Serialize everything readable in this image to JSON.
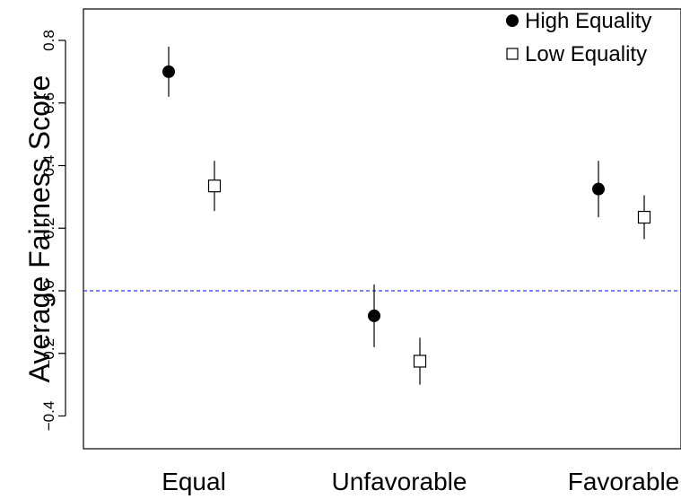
{
  "chart_data": {
    "type": "scatter",
    "title": "",
    "xlabel": "",
    "ylabel": "Average Fairness Score",
    "categories": [
      "Equal",
      "Unfavorable",
      "Favorable"
    ],
    "ylim": [
      -0.5,
      0.88
    ],
    "yticks": [
      -0.4,
      -0.2,
      0.0,
      0.2,
      0.4,
      0.6,
      0.8
    ],
    "ytick_labels": [
      "−0.4",
      "−0.2",
      "0.0",
      "0.2",
      "0.4",
      "0.6",
      "0.8"
    ],
    "reference_line": {
      "y": 0.0,
      "style": "dashed",
      "color": "#3333ff"
    },
    "grid": false,
    "legend_position": "top-right",
    "series": [
      {
        "name": "High Equality",
        "marker": "filled-circle",
        "color": "#000000",
        "values": [
          0.7,
          -0.08,
          0.325
        ],
        "lower": [
          0.62,
          -0.18,
          0.235
        ],
        "upper": [
          0.78,
          0.02,
          0.415
        ]
      },
      {
        "name": "Low Equality",
        "marker": "open-square",
        "color": "#000000",
        "values": [
          0.335,
          -0.225,
          0.235
        ],
        "lower": [
          0.255,
          -0.3,
          0.165
        ],
        "upper": [
          0.415,
          -0.15,
          0.305
        ]
      }
    ]
  }
}
